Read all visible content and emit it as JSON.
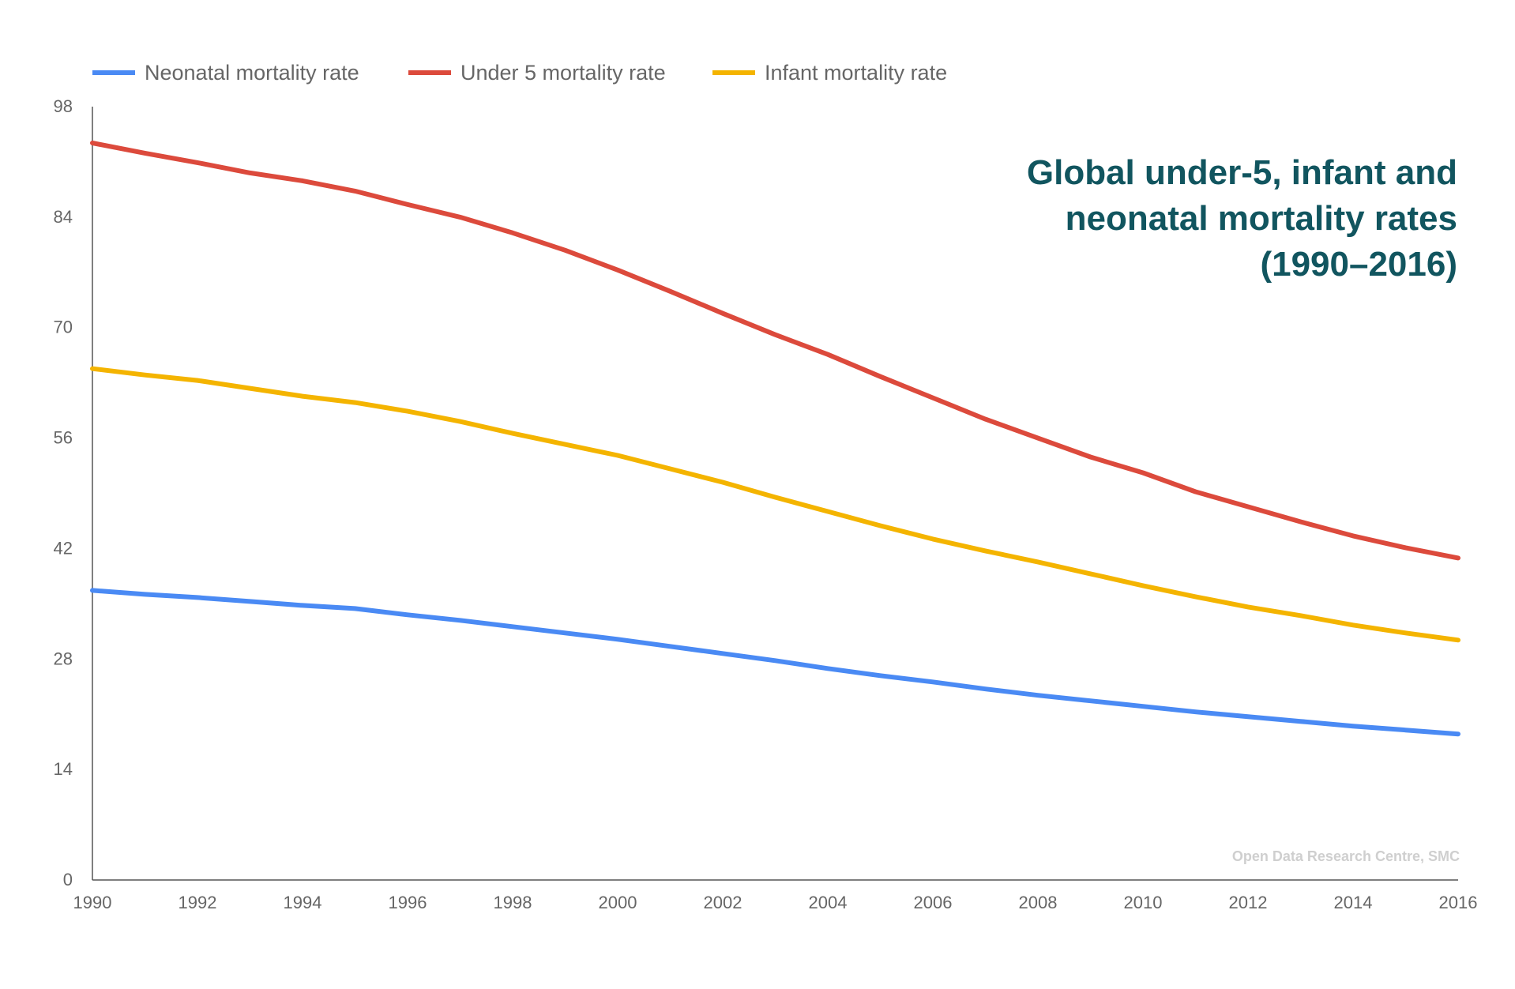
{
  "chart_data": {
    "type": "line",
    "title_lines": [
      "Global under-5, infant and",
      "neonatal mortality rates",
      "(1990–2016)"
    ],
    "credit": "Open Data Research Centre, SMC",
    "xlabel": "",
    "ylabel": "",
    "xlim": [
      1990,
      2016
    ],
    "ylim": [
      0,
      98
    ],
    "x_ticks": [
      1990,
      1992,
      1994,
      1996,
      1998,
      2000,
      2002,
      2004,
      2006,
      2008,
      2010,
      2012,
      2014,
      2016
    ],
    "y_ticks": [
      0,
      14,
      28,
      42,
      56,
      70,
      84,
      98
    ],
    "grid": false,
    "legend_position": "top-left",
    "x": [
      1990,
      1991,
      1992,
      1993,
      1994,
      1995,
      1996,
      1997,
      1998,
      1999,
      2000,
      2001,
      2002,
      2003,
      2004,
      2005,
      2006,
      2007,
      2008,
      2009,
      2010,
      2011,
      2012,
      2013,
      2014,
      2015,
      2016
    ],
    "series": [
      {
        "name": "Neonatal mortality rate",
        "color": "#4a8af4",
        "values": [
          36.7,
          36.2,
          35.8,
          35.3,
          34.8,
          34.4,
          33.6,
          32.9,
          32.1,
          31.3,
          30.5,
          29.6,
          28.7,
          27.8,
          26.8,
          25.9,
          25.1,
          24.2,
          23.4,
          22.7,
          22.0,
          21.3,
          20.7,
          20.1,
          19.5,
          19.0,
          18.5
        ]
      },
      {
        "name": "Under 5 mortality rate",
        "color": "#dc4a3c",
        "values": [
          93.4,
          92.1,
          90.9,
          89.6,
          88.6,
          87.3,
          85.6,
          84.0,
          82.0,
          79.8,
          77.3,
          74.6,
          71.8,
          69.1,
          66.6,
          63.8,
          61.1,
          58.4,
          56.0,
          53.6,
          51.6,
          49.2,
          47.3,
          45.4,
          43.6,
          42.1,
          40.8
        ]
      },
      {
        "name": "Infant mortality rate",
        "color": "#f4b400",
        "values": [
          64.8,
          64.0,
          63.3,
          62.3,
          61.3,
          60.5,
          59.4,
          58.1,
          56.6,
          55.2,
          53.8,
          52.1,
          50.4,
          48.5,
          46.7,
          44.9,
          43.2,
          41.7,
          40.3,
          38.8,
          37.3,
          35.9,
          34.6,
          33.5,
          32.3,
          31.3,
          30.4
        ]
      }
    ]
  }
}
